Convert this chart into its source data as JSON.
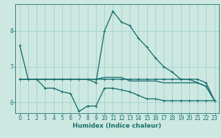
{
  "title": "",
  "xlabel": "Humidex (Indice chaleur)",
  "background_color": "#cce8e0",
  "line_color": "#1a7070",
  "grid_color": "#99cccc",
  "xlim": [
    -0.5,
    23.5
  ],
  "ylim": [
    5.7,
    8.75
  ],
  "yticks": [
    6,
    7,
    8
  ],
  "xticks": [
    0,
    1,
    2,
    3,
    4,
    5,
    6,
    7,
    8,
    9,
    10,
    11,
    12,
    13,
    14,
    15,
    16,
    17,
    18,
    19,
    20,
    21,
    22,
    23
  ],
  "series": [
    {
      "x": [
        0,
        1,
        2,
        3,
        4,
        5,
        6,
        7,
        8,
        9,
        10,
        11,
        12,
        13,
        14,
        15,
        16,
        17,
        18,
        19,
        20,
        21,
        22,
        23
      ],
      "y": [
        7.6,
        6.65,
        6.65,
        6.65,
        6.65,
        6.65,
        6.65,
        6.65,
        6.65,
        6.65,
        6.65,
        6.65,
        6.65,
        6.65,
        6.65,
        6.65,
        6.65,
        6.65,
        6.65,
        6.65,
        6.65,
        6.65,
        6.55,
        6.05
      ],
      "marker": true
    },
    {
      "x": [
        0,
        1,
        2,
        3,
        4,
        5,
        6,
        7,
        8,
        9,
        10,
        11,
        12,
        13,
        14,
        15,
        16,
        17,
        18,
        19,
        20,
        21,
        22,
        23
      ],
      "y": [
        6.65,
        6.65,
        6.65,
        6.4,
        6.4,
        6.3,
        6.25,
        5.75,
        5.9,
        5.9,
        6.4,
        6.4,
        6.35,
        6.3,
        6.2,
        6.1,
        6.1,
        6.05,
        6.05,
        6.05,
        6.05,
        6.05,
        6.05,
        6.05
      ],
      "marker": true
    },
    {
      "x": [
        0,
        1,
        2,
        3,
        4,
        5,
        6,
        7,
        8,
        9,
        10,
        11,
        12,
        13,
        14,
        15,
        16,
        17,
        18,
        19,
        20,
        21,
        22,
        23
      ],
      "y": [
        6.65,
        6.65,
        6.65,
        6.65,
        6.65,
        6.65,
        6.65,
        6.65,
        6.65,
        6.65,
        6.7,
        6.7,
        6.7,
        6.6,
        6.6,
        6.6,
        6.6,
        6.55,
        6.55,
        6.55,
        6.55,
        6.55,
        6.45,
        6.05
      ],
      "marker": false
    },
    {
      "x": [
        0,
        1,
        2,
        3,
        4,
        5,
        6,
        7,
        8,
        9,
        10,
        11,
        12,
        13,
        14,
        15,
        16,
        17,
        18,
        19,
        20,
        21,
        22,
        23
      ],
      "y": [
        6.65,
        6.65,
        6.65,
        6.65,
        6.65,
        6.65,
        6.65,
        6.65,
        6.65,
        6.55,
        8.0,
        8.55,
        8.25,
        8.15,
        7.8,
        7.55,
        7.25,
        7.0,
        6.85,
        6.65,
        6.65,
        6.55,
        6.45,
        6.05
      ],
      "marker": true
    }
  ],
  "line_width": 1.0,
  "marker_size": 2.5,
  "font_size_label": 6.5,
  "font_size_tick": 5.5
}
